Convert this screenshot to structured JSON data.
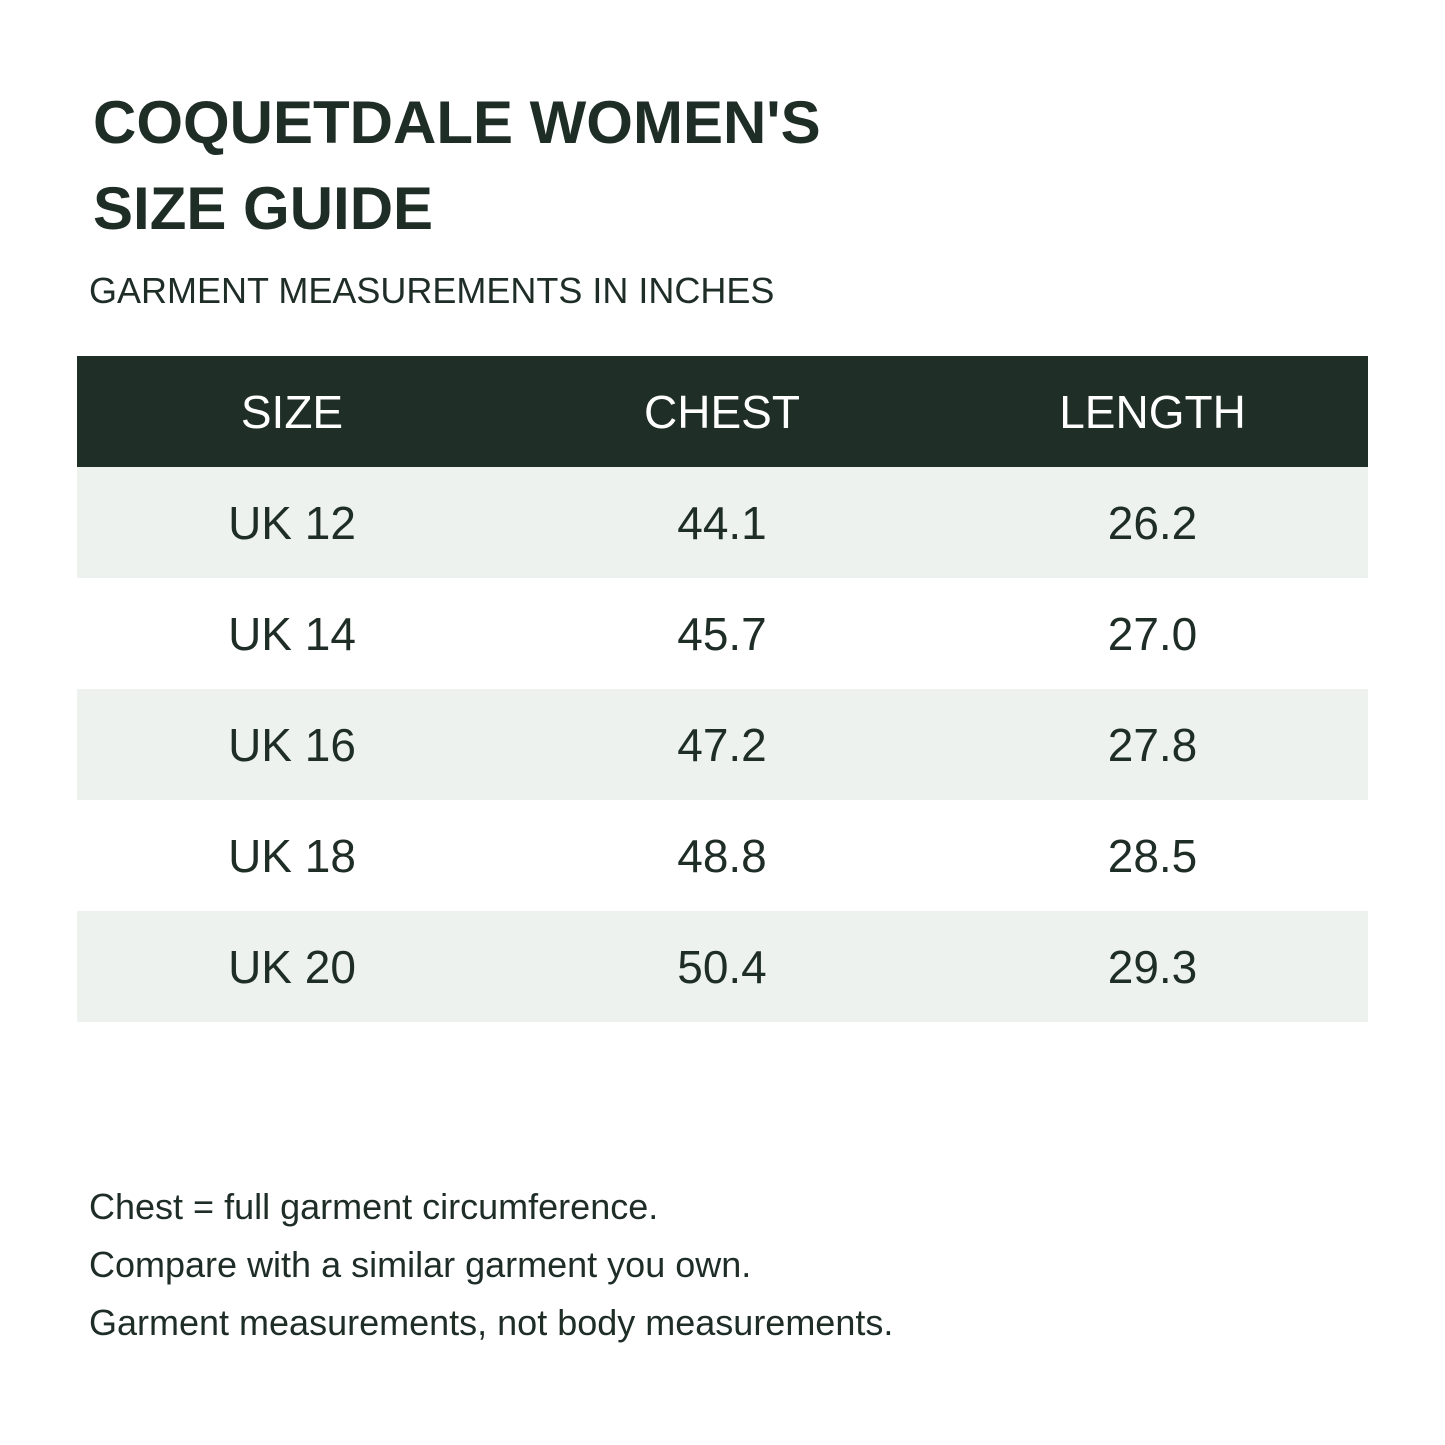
{
  "brand_colors": {
    "header_background": "#202e28",
    "stripe_background": "#edf2ee",
    "text": "#1f2d27"
  },
  "title": {
    "line1": "COQUETDALE WOMEN'S",
    "line2": "SIZE GUIDE"
  },
  "subtitle": "GARMENT MEASUREMENTS IN INCHES",
  "table": {
    "headers": [
      "SIZE",
      "CHEST",
      "LENGTH"
    ],
    "rows": [
      [
        "UK 12",
        "44.1",
        "26.2"
      ],
      [
        "UK 14",
        "45.7",
        "27.0"
      ],
      [
        "UK 16",
        "47.2",
        "27.8"
      ],
      [
        "UK 18",
        "48.8",
        "28.5"
      ],
      [
        "UK 20",
        "50.4",
        "29.3"
      ]
    ]
  },
  "notes": [
    "Chest = full garment circumference.",
    "Compare with a similar garment you own.",
    "Garment measurements, not body measurements."
  ]
}
